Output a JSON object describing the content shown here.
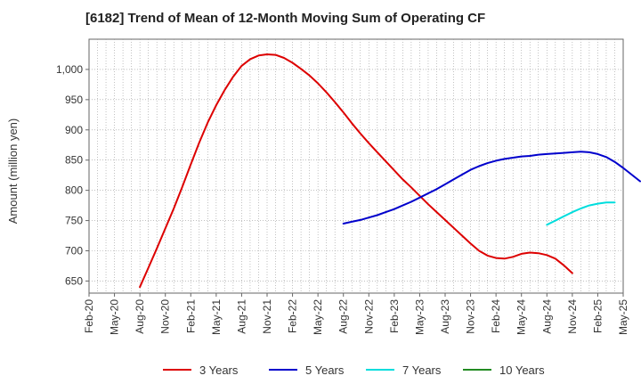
{
  "chart_data": {
    "type": "line",
    "title": "[6182]  Trend of Mean of 12-Month Moving Sum of Operating CF",
    "xlabel": "",
    "ylabel": "Amount (million yen)",
    "ylim": [
      630,
      1050
    ],
    "yticks": [
      650,
      700,
      750,
      800,
      850,
      900,
      950,
      1000
    ],
    "ytick_labels": [
      "650",
      "700",
      "750",
      "800",
      "850",
      "900",
      "950",
      "1,000"
    ],
    "grid": true,
    "x_start": "Feb-20",
    "x_ticks": [
      "Feb-20",
      "May-20",
      "Aug-20",
      "Nov-20",
      "Feb-21",
      "May-21",
      "Aug-21",
      "Nov-21",
      "Feb-22",
      "May-22",
      "Aug-22",
      "Nov-22",
      "Feb-23",
      "May-23",
      "Aug-23",
      "Nov-23",
      "Feb-24",
      "May-24",
      "Aug-24",
      "Nov-24",
      "Feb-25",
      "May-25"
    ],
    "legend_position": "bottom",
    "series": [
      {
        "name": "3 Years",
        "color": "#dd0000",
        "start_month_index": 6,
        "values": [
          640,
          672,
          704,
          737,
          770,
          806,
          843,
          879,
          912,
          941,
          966,
          988,
          1006,
          1017,
          1023,
          1025,
          1024,
          1019,
          1011,
          1001,
          990,
          977,
          962,
          946,
          929,
          911,
          894,
          878,
          863,
          848,
          833,
          818,
          805,
          791,
          777,
          764,
          751,
          738,
          725,
          712,
          700,
          692,
          688,
          687,
          690,
          695,
          697,
          696,
          693,
          687,
          676,
          663
        ]
      },
      {
        "name": "5 Years",
        "color": "#0000cc",
        "start_month_index": 30,
        "values": [
          745,
          748,
          751,
          755,
          759,
          764,
          769,
          775,
          781,
          788,
          795,
          802,
          810,
          818,
          826,
          834,
          840,
          845,
          849,
          852,
          854,
          856,
          857,
          859,
          860,
          861,
          862,
          863,
          864,
          863,
          860,
          855,
          847,
          837,
          826,
          815
        ]
      },
      {
        "name": "7 Years",
        "color": "#00dddd",
        "start_month_index": 54,
        "values": [
          743,
          750,
          757,
          764,
          770,
          775,
          778,
          780,
          780
        ]
      },
      {
        "name": "10 Years",
        "color": "#228b22",
        "start_month_index": 0,
        "values": []
      }
    ]
  }
}
